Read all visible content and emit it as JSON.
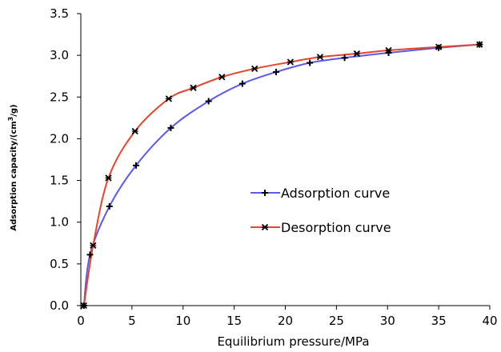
{
  "chart_data": {
    "type": "line",
    "title": "",
    "xlabel": "Equilibrium pressure/MPa",
    "ylabel_main": "Adsorption capacity/(cm",
    "ylabel_sup": "3",
    "ylabel_end": "/g)",
    "xlim": [
      0,
      40
    ],
    "ylim": [
      0,
      3.5
    ],
    "xticks": [
      "0",
      "5",
      "10",
      "15",
      "20",
      "25",
      "30",
      "35",
      "40"
    ],
    "yticks": [
      "0.0",
      "0.5",
      "1.0",
      "1.5",
      "2.0",
      "2.5",
      "3.0",
      "3.5"
    ],
    "grid": false,
    "legend_position": "center-right",
    "series": [
      {
        "name": "Adsorption curve",
        "color": "#5a5aee",
        "marker": "plus",
        "x": [
          0.3,
          0.9,
          2.8,
          5.4,
          8.8,
          12.5,
          15.8,
          19.1,
          22.4,
          25.8,
          30.1,
          35.0,
          39.0
        ],
        "y": [
          0.0,
          0.61,
          1.19,
          1.68,
          2.13,
          2.45,
          2.66,
          2.8,
          2.91,
          2.97,
          3.03,
          3.09,
          3.13
        ]
      },
      {
        "name": "Desorption curve",
        "color": "#e5452a",
        "marker": "x",
        "x": [
          0.3,
          1.2,
          2.7,
          5.3,
          8.6,
          11.0,
          13.8,
          17.0,
          20.5,
          23.4,
          27.0,
          30.1,
          35.0,
          39.0
        ],
        "y": [
          0.0,
          0.72,
          1.53,
          2.09,
          2.48,
          2.61,
          2.74,
          2.84,
          2.92,
          2.98,
          3.02,
          3.06,
          3.1,
          3.13
        ]
      }
    ]
  }
}
